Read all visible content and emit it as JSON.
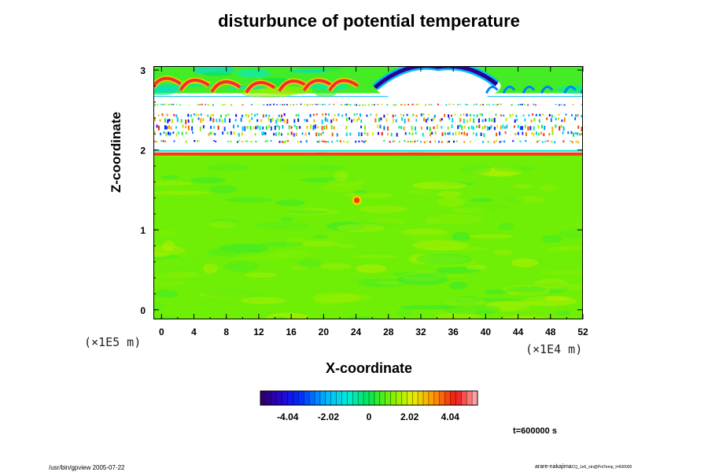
{
  "figure": {
    "unit_x": "(×1E4 m)",
    "unit_z": "(×1E5 m)",
    "time_label": "t=600000 s",
    "footer_left": "/usr/bin/gpview 2005-07-22",
    "footer_right_main": "arare-nakajima",
    "footer_right_sub": "CQ_1e6_stn@PotTemp_t=600000"
  },
  "chart_data": {
    "type": "heatmap",
    "title": "disturbunce of potential temperature",
    "xlabel": "X-coordinate",
    "ylabel": "Z-coordinate",
    "xlim": [
      -1,
      52
    ],
    "ylim": [
      -0.12,
      3.05
    ],
    "x_ticks": [
      0,
      4,
      8,
      12,
      16,
      20,
      24,
      28,
      32,
      36,
      40,
      44,
      48,
      52
    ],
    "y_ticks": [
      0,
      1,
      2,
      3
    ],
    "colorbar": {
      "min": -5.4,
      "max": 5.4,
      "ticks": [
        -4.04,
        -2.02,
        0,
        2.02,
        4.04
      ],
      "tick_labels": [
        "-4.04",
        "-2.02",
        "0",
        "2.02",
        "4.04"
      ],
      "levels": 40
    },
    "features": [
      {
        "name": "lower_layer",
        "z_range": [
          0,
          1.95
        ],
        "value_approx": 1.0
      },
      {
        "name": "inversion_line",
        "z": 1.96,
        "value_approx": 4.0
      },
      {
        "name": "blob",
        "x": 24,
        "z": 1.38,
        "value_approx": 4.0
      },
      {
        "name": "warm_waves",
        "x_range": [
          0,
          23
        ],
        "z": 2.85,
        "value_approx": 4.5
      },
      {
        "name": "cold_dome",
        "x_center": 34,
        "z": 2.95,
        "value_approx": -5.0
      }
    ]
  }
}
